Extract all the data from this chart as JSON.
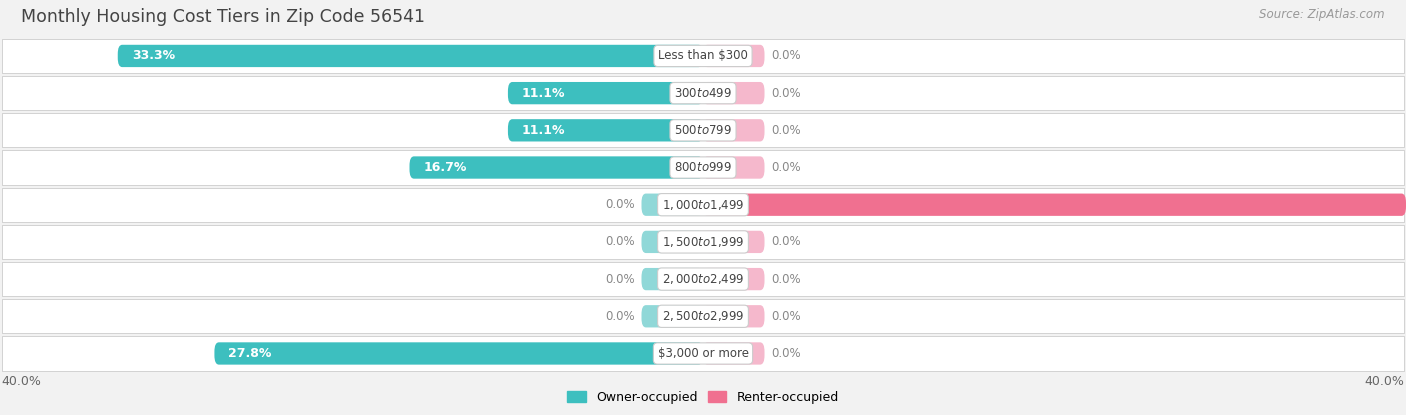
{
  "title": "Monthly Housing Cost Tiers in Zip Code 56541",
  "source": "Source: ZipAtlas.com",
  "categories": [
    "Less than $300",
    "$300 to $499",
    "$500 to $799",
    "$800 to $999",
    "$1,000 to $1,499",
    "$1,500 to $1,999",
    "$2,000 to $2,499",
    "$2,500 to $2,999",
    "$3,000 or more"
  ],
  "owner_values": [
    33.3,
    11.1,
    11.1,
    16.7,
    0.0,
    0.0,
    0.0,
    0.0,
    27.8
  ],
  "renter_values": [
    0.0,
    0.0,
    0.0,
    0.0,
    40.0,
    0.0,
    0.0,
    0.0,
    0.0
  ],
  "owner_color": "#3dbfbf",
  "renter_color": "#f07090",
  "owner_color_zero": "#90d8d8",
  "renter_color_zero": "#f5b8cc",
  "bg_color": "#f2f2f2",
  "row_bg_even": "#f9f9f9",
  "row_bg_odd": "#eeeeee",
  "max_value": 40.0,
  "stub_size": 3.5,
  "legend_owner": "Owner-occupied",
  "legend_renter": "Renter-occupied",
  "owner_label_color": "#c0783c",
  "renter_label_color": "#c0783c",
  "zero_label_color": "#888888"
}
